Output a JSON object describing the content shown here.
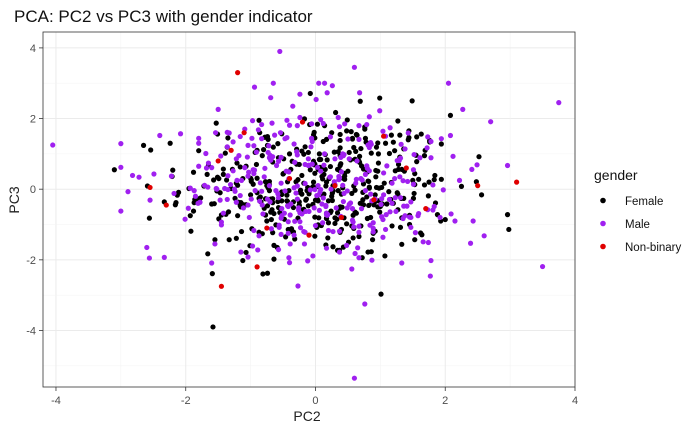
{
  "chart_data": {
    "type": "scatter",
    "title": "PCA: PC2 vs PC3 with gender indicator",
    "xlabel": "PC2",
    "ylabel": "PC3",
    "xlim": [
      -4.2,
      4.0
    ],
    "ylim": [
      -5.6,
      4.45
    ],
    "x_ticks": [
      -4,
      -2,
      0,
      2,
      4
    ],
    "y_ticks": [
      -4,
      -2,
      0,
      2,
      4
    ],
    "grid": true,
    "legend": {
      "title": "gender",
      "position": "right"
    },
    "series": [
      {
        "name": "Female",
        "color": "#000000",
        "points": []
      },
      {
        "name": "Male",
        "color": "#a020f0",
        "points": [
          [
            -4.05,
            1.25
          ],
          [
            3.75,
            2.45
          ],
          [
            -0.55,
            3.9
          ],
          [
            0.6,
            3.45
          ],
          [
            0.6,
            -5.35
          ],
          [
            -3.0,
            0.62
          ],
          [
            -2.6,
            -1.65
          ]
        ]
      },
      {
        "name": "Non-binary",
        "color": "#e00000",
        "points": [
          [
            -1.2,
            3.3
          ],
          [
            -1.45,
            -2.75
          ],
          [
            3.1,
            0.2
          ],
          [
            2.5,
            0.1
          ],
          [
            -2.55,
            0.05
          ],
          [
            -2.3,
            -0.45
          ],
          [
            -0.2,
            1.9
          ],
          [
            1.05,
            1.5
          ],
          [
            -1.5,
            0.8
          ],
          [
            -1.3,
            1.1
          ],
          [
            -0.4,
            0.3
          ],
          [
            0.9,
            -0.3
          ],
          [
            1.7,
            -0.55
          ],
          [
            -0.9,
            -2.2
          ],
          [
            0.3,
            0.1
          ],
          [
            -0.75,
            -1.1
          ],
          [
            -0.1,
            -1.3
          ],
          [
            1.4,
            0.6
          ],
          [
            -1.1,
            1.6
          ],
          [
            0.4,
            -0.8
          ]
        ]
      }
    ]
  }
}
